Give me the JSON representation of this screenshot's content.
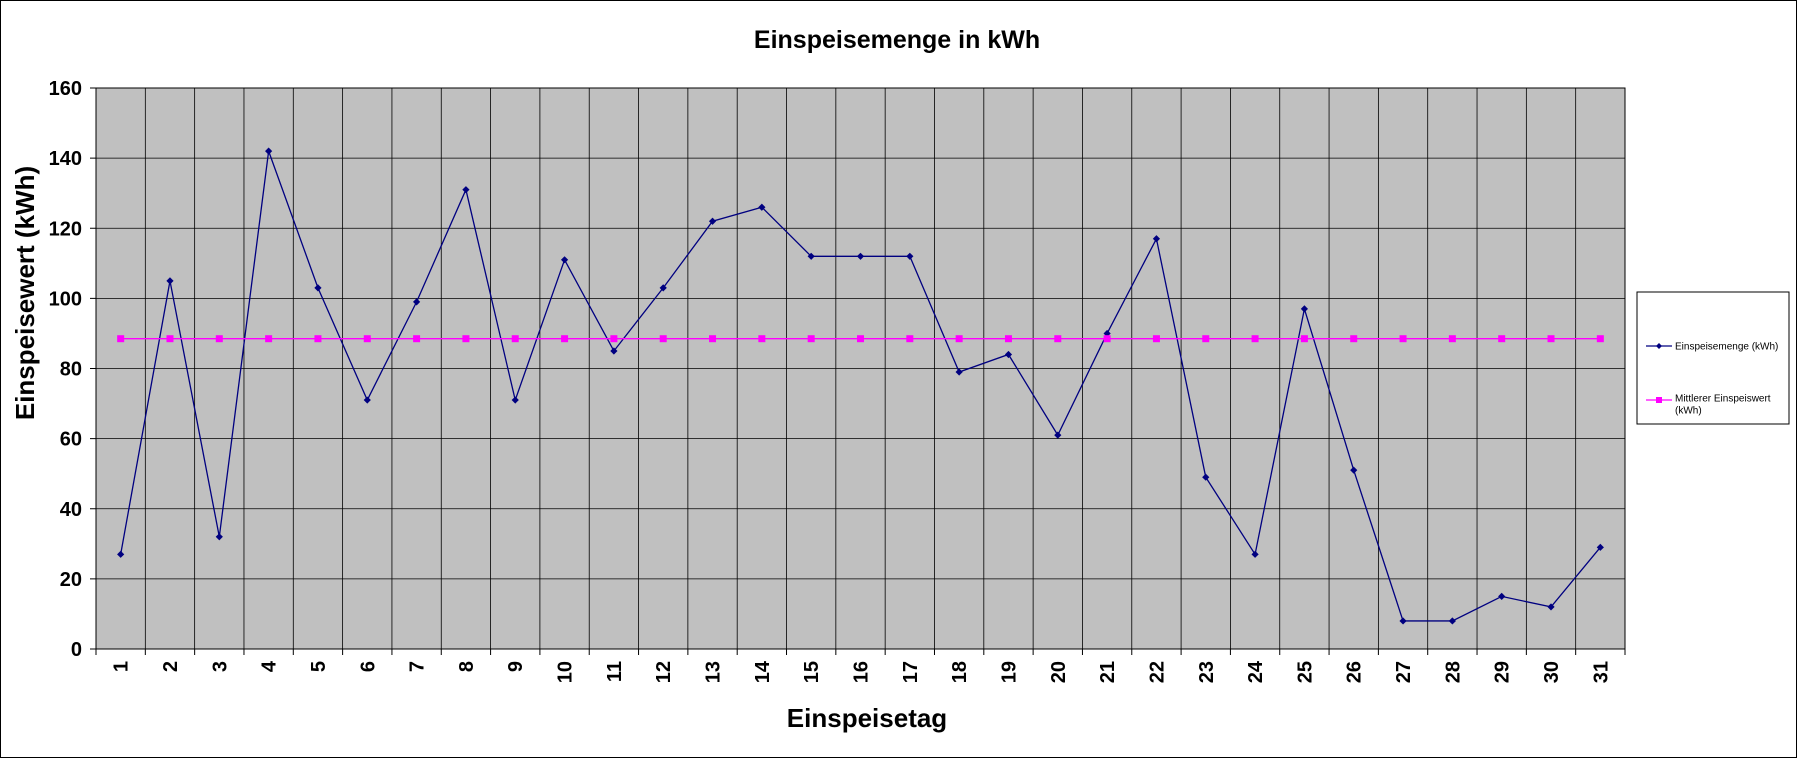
{
  "chart_data": {
    "type": "line",
    "title": "Einspeisemenge in kWh",
    "xlabel": "Einspeisetag",
    "ylabel": "Einspeisewert  (kWh)",
    "categories": [
      "1",
      "2",
      "3",
      "4",
      "5",
      "6",
      "7",
      "8",
      "9",
      "10",
      "11",
      "12",
      "13",
      "14",
      "15",
      "16",
      "17",
      "18",
      "19",
      "20",
      "21",
      "22",
      "23",
      "24",
      "25",
      "26",
      "27",
      "28",
      "29",
      "30",
      "31"
    ],
    "ylim": [
      0,
      160
    ],
    "yticks": [
      "0",
      "20",
      "40",
      "60",
      "80",
      "100",
      "120",
      "140",
      "160"
    ],
    "grid": true,
    "legend_position": "right",
    "series": [
      {
        "name": "Einspeisemenge (kWh)",
        "color": "#000080",
        "marker": "diamond",
        "values": [
          27,
          105,
          32,
          142,
          103,
          71,
          99,
          131,
          71,
          111,
          85,
          103,
          122,
          126,
          112,
          112,
          112,
          79,
          84,
          61,
          90,
          117,
          49,
          27,
          97,
          51,
          8,
          8,
          15,
          12,
          29
        ]
      },
      {
        "name": "Mittlerer Einspeiswert (kWh)",
        "color": "#ff00ff",
        "marker": "square",
        "values": [
          88.5,
          88.5,
          88.5,
          88.5,
          88.5,
          88.5,
          88.5,
          88.5,
          88.5,
          88.5,
          88.5,
          88.5,
          88.5,
          88.5,
          88.5,
          88.5,
          88.5,
          88.5,
          88.5,
          88.5,
          88.5,
          88.5,
          88.5,
          88.5,
          88.5,
          88.5,
          88.5,
          88.5,
          88.5,
          88.5,
          88.5
        ]
      }
    ],
    "plot_background": "#c0c0c0"
  }
}
